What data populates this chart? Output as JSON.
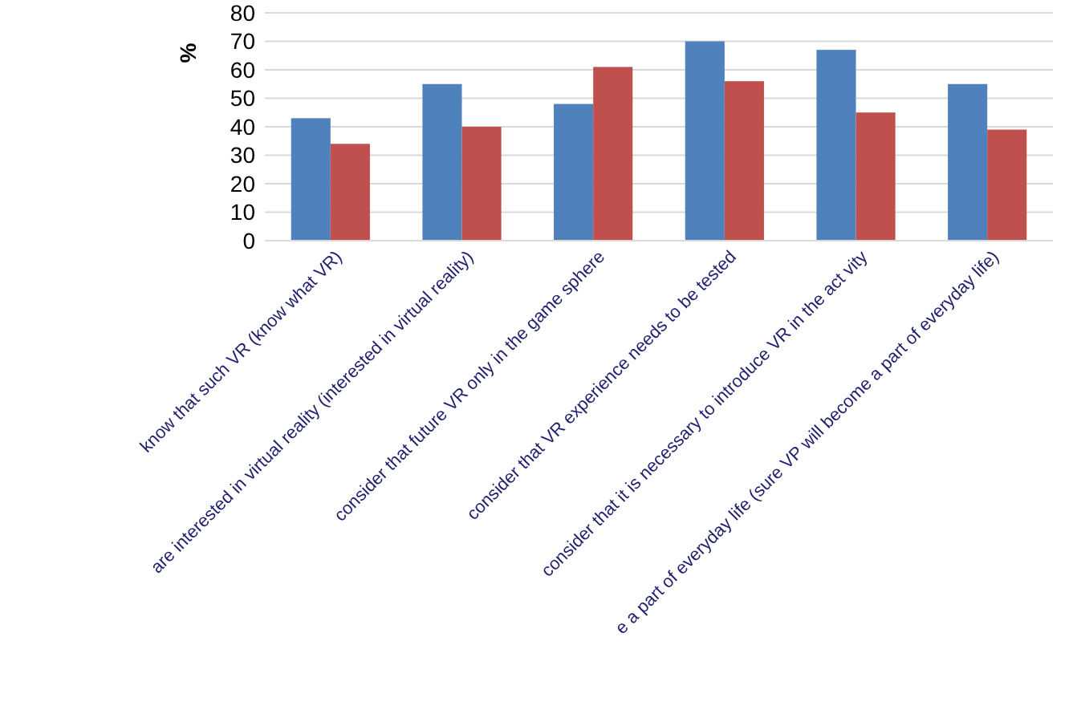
{
  "chart_data": {
    "type": "bar",
    "ylabel": "%",
    "categories": [
      "know that such VR (know what VR)",
      "are interested in virtual reality (interested in virtual reality)",
      "consider that future VR only in the game sphere",
      "consider that VR experience needs to be tested",
      "consider that it is necessary to introduce VR in the act vity",
      "e a part of everyday life (sure VP will become a part of everyday life)"
    ],
    "series": [
      {
        "color": "#4f81bd",
        "values": [
          43,
          55,
          48,
          70,
          67,
          55
        ]
      },
      {
        "color": "#c0504d",
        "values": [
          34,
          40,
          61,
          56,
          45,
          39
        ]
      }
    ],
    "ylim": [
      0,
      80
    ],
    "yticks": [
      0,
      10,
      20,
      30,
      40,
      50,
      60,
      70,
      80
    ],
    "grid": "y"
  }
}
